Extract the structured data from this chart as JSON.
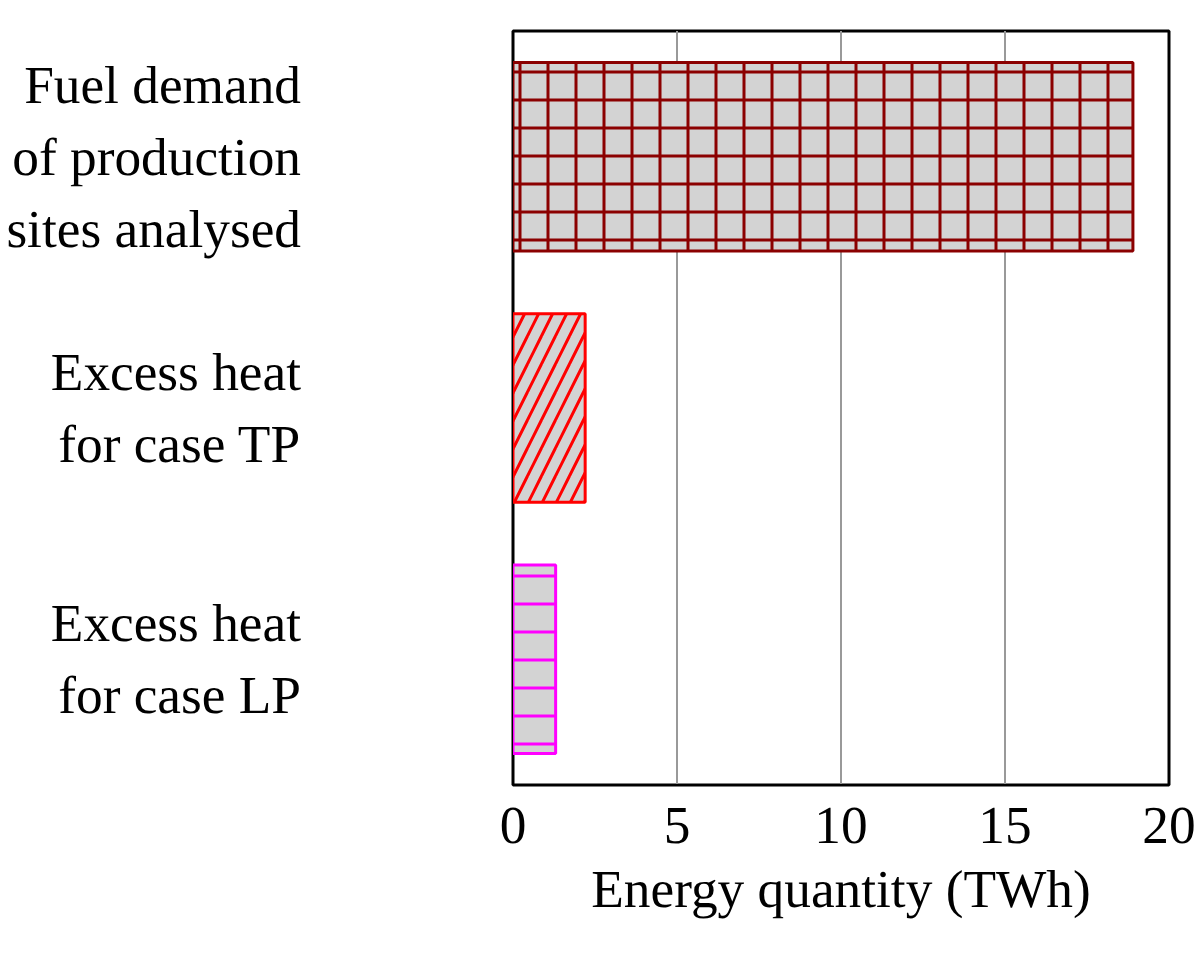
{
  "chart_data": {
    "type": "bar",
    "orientation": "horizontal",
    "xlabel": "Energy quantity (TWh)",
    "categories": [
      "Fuel demand\nof production\nsites analysed",
      "Excess heat\nfor case TP",
      "Excess heat\nfor case LP"
    ],
    "values": [
      18.9,
      2.2,
      1.3
    ],
    "colors": [
      "#8b0000",
      "#ff0000",
      "#ff00ff"
    ],
    "xlim": [
      0,
      20
    ],
    "xticks": [
      0,
      5,
      10,
      15,
      20
    ],
    "grid": "x"
  }
}
